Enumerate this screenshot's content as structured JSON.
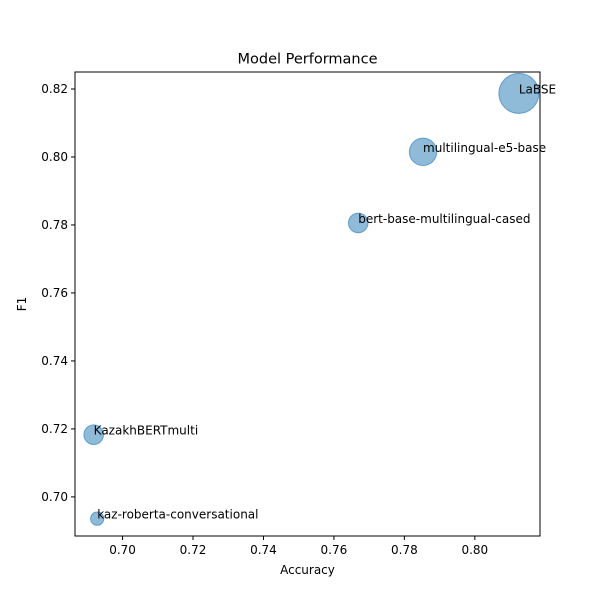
{
  "chart_data": {
    "type": "scatter",
    "title": "Model Performance",
    "xlabel": "Accuracy",
    "ylabel": "F1",
    "xlim": [
      0.6865,
      0.8185
    ],
    "ylim": [
      0.6885,
      0.825
    ],
    "xticks": [
      "0.70",
      "0.72",
      "0.74",
      "0.76",
      "0.78",
      "0.80"
    ],
    "xtick_values": [
      0.7,
      0.72,
      0.74,
      0.76,
      0.78,
      0.8
    ],
    "yticks": [
      "0.70",
      "0.72",
      "0.74",
      "0.76",
      "0.78",
      "0.80",
      "0.82"
    ],
    "ytick_values": [
      0.7,
      0.72,
      0.74,
      0.76,
      0.78,
      0.8,
      0.82
    ],
    "grid": false,
    "marker_color": "#1f77b4",
    "marker_alpha": 0.5,
    "points": [
      {
        "label": "LaBSE",
        "x": 0.8125,
        "y": 0.8187,
        "size_rel": 1.0
      },
      {
        "label": "multilingual-e5-base",
        "x": 0.7853,
        "y": 0.8015,
        "size_rel": 0.47
      },
      {
        "label": "bert-base-multilingual-cased",
        "x": 0.7669,
        "y": 0.7806,
        "size_rel": 0.24
      },
      {
        "label": "KazakhBERTmulti",
        "x": 0.6918,
        "y": 0.7183,
        "size_rel": 0.24
      },
      {
        "label": "kaz-roberta-conversational",
        "x": 0.6928,
        "y": 0.6936,
        "size_rel": 0.11
      }
    ]
  }
}
